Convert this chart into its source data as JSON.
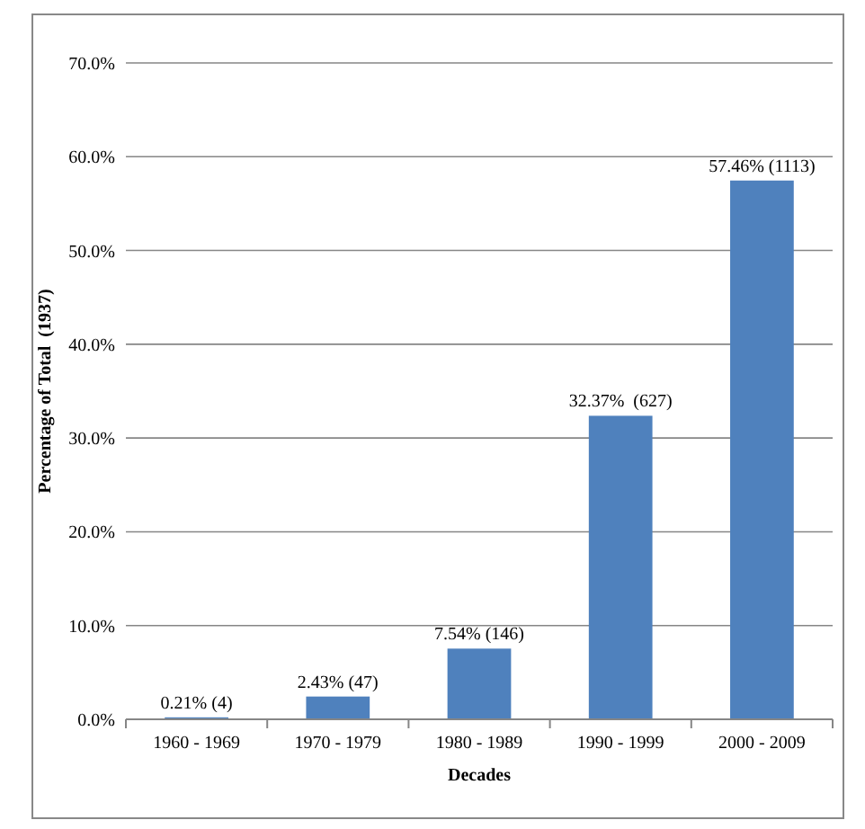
{
  "chart_data": {
    "type": "bar",
    "xlabel": "Decades",
    "ylabel": "Percentage of Total  (1937)",
    "categories": [
      "1960 - 1969",
      "1970 - 1979",
      "1980 - 1989",
      "1990 - 1999",
      "2000 - 2009"
    ],
    "values": [
      0.21,
      2.43,
      7.54,
      32.37,
      57.46
    ],
    "value_labels": [
      "0.21% (4)",
      "2.43% (47)",
      "7.54% (146)",
      "32.37%  (627)",
      "57.46% (1113)"
    ],
    "color": "#4f81bd",
    "ylim": [
      0,
      70
    ],
    "yticks": [
      {
        "value": 0,
        "label": "0.0%"
      },
      {
        "value": 10,
        "label": "10.0%"
      },
      {
        "value": 20,
        "label": "20.0%"
      },
      {
        "value": 30,
        "label": "30.0%"
      },
      {
        "value": 40,
        "label": "40.0%"
      },
      {
        "value": 50,
        "label": "50.0%"
      },
      {
        "value": 60,
        "label": "60.0%"
      },
      {
        "value": 70,
        "label": "70.0%"
      }
    ],
    "grid": "y"
  }
}
